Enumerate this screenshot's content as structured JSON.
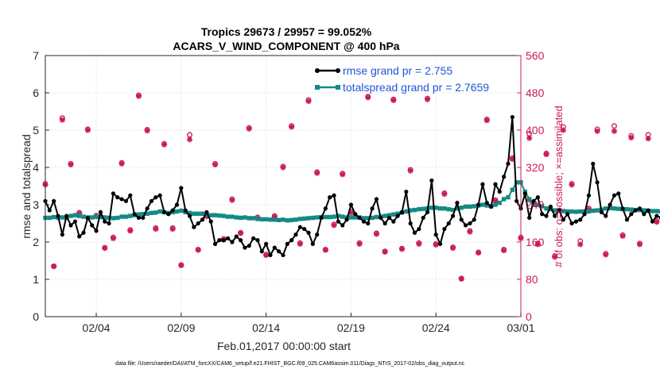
{
  "title_line1": "Tropics 29673 / 29957 = 99.052%",
  "title_line2": "ACARS_V_WIND_COMPONENT @ 400 hPa",
  "xlabel": "Feb.01,2017 00:00:00 start",
  "footer": "data file: /Users/raeder/DAI/ATM_forcXX/CAM6_setup/f.e21.FHIST_BGC.f09_025.CAM6assim.011/Diags_NTrS_2017-02/obs_diag_output.nc",
  "colors": {
    "rmse": "#000000",
    "spread": "#138a86",
    "obs": "#cc1a59",
    "legend_text": "#1f55d6"
  },
  "chart_data": {
    "type": "line",
    "title": "Tropics 29673 / 29957 = 99.052%\nACARS_V_WIND_COMPONENT @ 400 hPa",
    "xlabel": "Feb.01,2017 00:00:00 start",
    "ylabel": "rmse and totalspread",
    "ylabel_right": "# of obs: o=possible; ×=assimilated",
    "ylim": [
      0,
      7
    ],
    "ylim_right": [
      0,
      560
    ],
    "yticks": [
      "0",
      "1",
      "2",
      "3",
      "4",
      "5",
      "6",
      "7"
    ],
    "yticks_right": [
      "0",
      "80",
      "160",
      "240",
      "320",
      "400",
      "480",
      "560"
    ],
    "xlim": [
      1,
      29
    ],
    "xtick_values": [
      4,
      9,
      14,
      19,
      24,
      29
    ],
    "xtick_labels": [
      "02/04",
      "02/09",
      "02/14",
      "02/19",
      "02/24",
      "03/01"
    ],
    "grid": true,
    "legend_position": "top-right",
    "series": [
      {
        "name": "rmse grand pr = 2.755",
        "color": "#000000",
        "x_start": 1.0,
        "x_step": 0.25,
        "values": [
          3.1,
          2.85,
          3.1,
          2.7,
          2.2,
          2.7,
          2.45,
          2.55,
          2.15,
          2.25,
          2.65,
          2.45,
          2.3,
          2.8,
          2.55,
          2.5,
          3.3,
          3.2,
          3.15,
          3.1,
          3.25,
          2.75,
          2.65,
          2.65,
          2.9,
          3.1,
          3.2,
          3.25,
          2.8,
          2.75,
          2.85,
          3.0,
          3.45,
          2.85,
          2.7,
          2.4,
          2.5,
          2.6,
          2.8,
          2.55,
          1.95,
          2.05,
          2.05,
          2.1,
          2.0,
          2.15,
          2.05,
          1.85,
          1.9,
          2.1,
          2.05,
          1.75,
          1.95,
          1.65,
          1.85,
          1.75,
          1.65,
          1.95,
          2.05,
          2.2,
          2.4,
          2.35,
          2.25,
          1.95,
          2.2,
          2.65,
          2.9,
          3.2,
          3.25,
          2.55,
          2.45,
          2.6,
          3.0,
          2.75,
          2.65,
          2.55,
          2.5,
          2.9,
          3.15,
          2.65,
          2.5,
          2.65,
          2.55,
          2.7,
          2.8,
          3.35,
          2.5,
          2.25,
          2.35,
          2.65,
          2.8,
          3.65,
          2.2,
          1.95,
          2.35,
          2.5,
          2.7,
          3.05,
          2.6,
          2.45,
          2.5,
          2.6,
          3.0,
          3.55,
          3.05,
          2.95,
          3.55,
          3.35,
          3.75,
          4.1,
          5.35,
          3.1,
          2.9,
          3.3,
          2.65,
          3.1,
          3.2,
          2.75,
          2.7,
          2.95,
          2.7,
          2.85,
          2.6,
          2.75,
          2.5,
          2.55,
          2.6,
          2.75,
          3.25,
          4.1,
          3.6,
          2.8,
          2.7,
          3.0,
          3.25,
          3.3,
          2.9,
          2.6,
          2.75,
          2.85,
          2.9,
          2.75,
          2.85,
          2.55,
          2.7,
          2.65,
          2.35,
          2.25,
          2.5,
          2.35,
          2.1,
          2.1,
          1.85,
          2.6,
          2.75,
          2.3
        ]
      },
      {
        "name": "totalspread grand pr = 2.7659",
        "color": "#138a86",
        "x_start": 1.0,
        "x_step": 0.25,
        "values": [
          2.65,
          2.65,
          2.67,
          2.65,
          2.66,
          2.65,
          2.7,
          2.72,
          2.7,
          2.68,
          2.66,
          2.66,
          2.68,
          2.67,
          2.66,
          2.65,
          2.64,
          2.65,
          2.68,
          2.68,
          2.7,
          2.72,
          2.74,
          2.75,
          2.76,
          2.78,
          2.79,
          2.82,
          2.8,
          2.78,
          2.8,
          2.82,
          2.84,
          2.8,
          2.78,
          2.76,
          2.76,
          2.76,
          2.73,
          2.72,
          2.72,
          2.71,
          2.7,
          2.68,
          2.68,
          2.66,
          2.65,
          2.66,
          2.64,
          2.64,
          2.62,
          2.61,
          2.61,
          2.6,
          2.6,
          2.59,
          2.6,
          2.58,
          2.59,
          2.6,
          2.62,
          2.63,
          2.64,
          2.65,
          2.66,
          2.67,
          2.67,
          2.67,
          2.68,
          2.7,
          2.68,
          2.66,
          2.66,
          2.66,
          2.66,
          2.64,
          2.64,
          2.65,
          2.67,
          2.68,
          2.7,
          2.72,
          2.74,
          2.76,
          2.79,
          2.82,
          2.85,
          2.86,
          2.88,
          2.89,
          2.9,
          2.92,
          2.92,
          2.9,
          2.9,
          2.88,
          2.86,
          2.9,
          2.92,
          2.95,
          2.95,
          2.96,
          2.98,
          3.0,
          2.98,
          2.96,
          3.0,
          3.05,
          3.15,
          3.2,
          3.4,
          3.6,
          3.6,
          3.35,
          3.15,
          3.0,
          3.0,
          2.96,
          2.9,
          2.88,
          2.85,
          2.84,
          2.83,
          2.82,
          2.82,
          2.81,
          2.82,
          2.82,
          2.82,
          2.84,
          2.85,
          2.87,
          2.9,
          2.91,
          2.9,
          2.89,
          2.88,
          2.88,
          2.87,
          2.86,
          2.86,
          2.85,
          2.84,
          2.83,
          2.83,
          2.82,
          2.8,
          2.78,
          2.76,
          2.74,
          2.72,
          2.72,
          2.72,
          2.71,
          2.7,
          2.69,
          2.68,
          2.67
        ]
      }
    ],
    "obs_counts": {
      "x_start": 1.0,
      "x_step": 0.5,
      "possible": [
        285,
        108,
        426,
        328,
        223,
        402,
        217,
        148,
        170,
        330,
        186,
        475,
        401,
        190,
        371,
        190,
        111,
        390,
        144,
        217,
        328,
        167,
        252,
        180,
        405,
        213,
        133,
        216,
        322,
        409,
        158,
        465,
        310,
        144,
        198,
        307,
        225,
        158,
        472,
        179,
        140,
        466,
        146,
        315,
        158,
        468,
        156,
        265,
        149,
        82,
        184,
        138,
        423,
        250,
        144,
        340,
        170,
        392,
        157,
        350,
        130,
        407,
        285,
        162,
        232,
        402,
        135,
        409,
        175,
        388,
        157,
        390,
        205,
        315,
        128,
        373,
        140,
        369,
        164,
        266,
        136,
        405,
        290,
        415,
        222,
        310,
        164,
        318,
        127,
        421,
        138,
        205,
        306,
        425,
        194,
        162,
        411,
        193,
        140,
        329,
        412,
        320
      ],
      "assimilated": [
        283,
        108,
        422,
        326,
        221,
        400,
        215,
        147,
        168,
        328,
        184,
        473,
        399,
        188,
        369,
        188,
        110,
        380,
        143,
        215,
        326,
        165,
        250,
        179,
        403,
        211,
        132,
        214,
        320,
        407,
        156,
        462,
        308,
        143,
        196,
        305,
        223,
        156,
        470,
        177,
        139,
        464,
        145,
        313,
        156,
        466,
        154,
        263,
        147,
        81,
        182,
        137,
        421,
        248,
        142,
        338,
        168,
        383,
        155,
        348,
        128,
        400,
        283,
        155,
        230,
        398,
        133,
        398,
        173,
        384,
        155,
        382,
        203,
        313,
        127,
        371,
        138,
        362,
        162,
        264,
        135,
        397,
        288,
        405,
        220,
        300,
        160,
        316,
        126,
        411,
        137,
        199,
        304,
        400,
        192,
        161,
        399,
        191,
        138,
        327,
        405,
        318
      ]
    }
  }
}
